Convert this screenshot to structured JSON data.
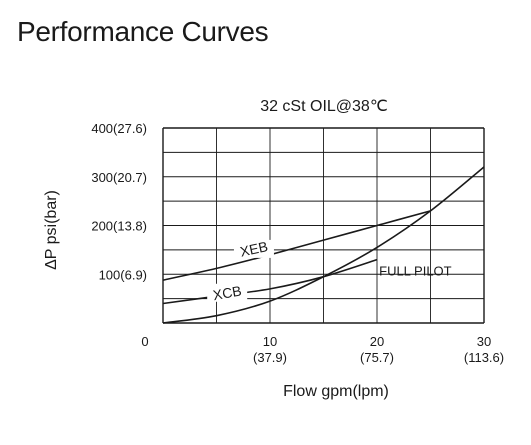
{
  "page": {
    "title": "Performance Curves"
  },
  "chart_data": {
    "type": "line",
    "subtitle": "32 cSt OIL@38℃",
    "xlabel": "Flow gpm(lpm)",
    "ylabel": "ΔP psi(bar)",
    "xlim": [
      0,
      30
    ],
    "ylim": [
      0,
      400
    ],
    "grid": true,
    "origin_label": "0",
    "x_ticks": [
      {
        "value": 10,
        "label": "10",
        "sublabel": "(37.9)"
      },
      {
        "value": 20,
        "label": "20",
        "sublabel": "(75.7)"
      },
      {
        "value": 30,
        "label": "30",
        "sublabel": "(113.6)"
      }
    ],
    "y_ticks": [
      {
        "value": 100,
        "label": "100(6.9)"
      },
      {
        "value": 200,
        "label": "200(13.8)"
      },
      {
        "value": 300,
        "label": "300(20.7)"
      },
      {
        "value": 400,
        "label": "400(27.6)"
      }
    ],
    "series": [
      {
        "name": "XEB",
        "label_at": [
          8.5,
          152
        ],
        "points": [
          [
            0,
            88
          ],
          [
            5,
            112
          ],
          [
            10,
            140
          ],
          [
            15,
            170
          ],
          [
            20,
            200
          ],
          [
            25,
            230
          ]
        ]
      },
      {
        "name": "XCB",
        "label_at": [
          6,
          62
        ],
        "points": [
          [
            0,
            40
          ],
          [
            5,
            55
          ],
          [
            10,
            70
          ],
          [
            15,
            95
          ],
          [
            20,
            130
          ]
        ]
      },
      {
        "name": "FULL PILOT",
        "label_at": [
          20,
          110
        ],
        "points": [
          [
            0,
            0
          ],
          [
            5,
            15
          ],
          [
            10,
            45
          ],
          [
            15,
            95
          ],
          [
            20,
            155
          ],
          [
            25,
            230
          ],
          [
            30,
            320
          ]
        ]
      }
    ],
    "annotations": [
      {
        "text": "FULL PILOT",
        "x": 20.2,
        "y": 108
      }
    ]
  }
}
